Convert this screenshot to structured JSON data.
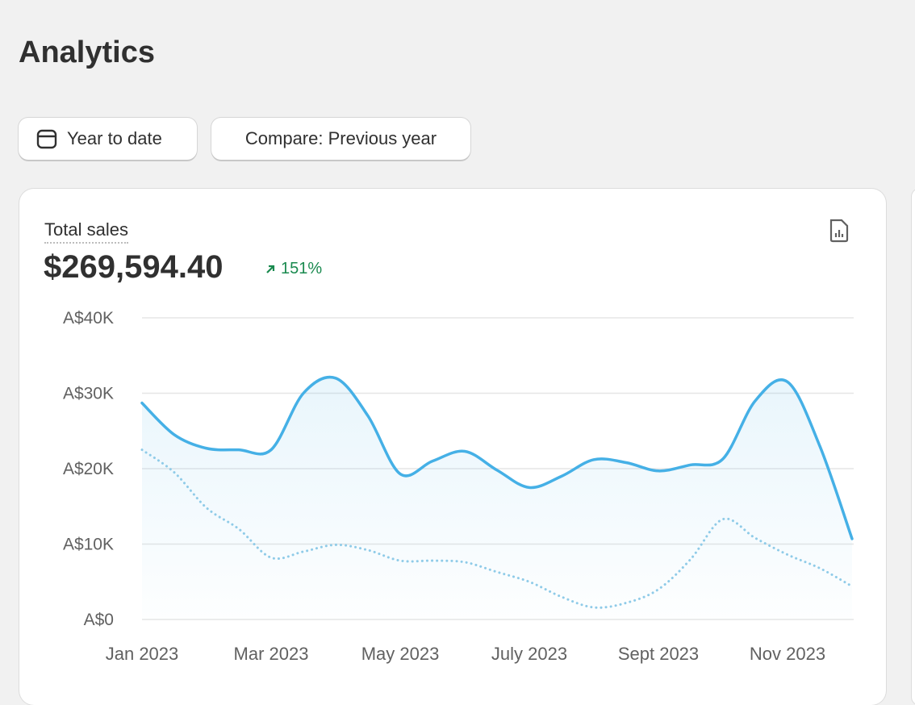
{
  "page": {
    "title": "Analytics",
    "date_button": "Year to date",
    "compare_button": "Compare: Previous year",
    "card": {
      "metric_label": "Total sales",
      "metric_value": "$269,594.40",
      "change": "151%"
    }
  },
  "chart_data": {
    "type": "line",
    "categories": [
      "Jan 2023",
      null,
      null,
      null,
      "Mar 2023",
      null,
      null,
      null,
      "May 2023",
      null,
      null,
      null,
      "July 2023",
      null,
      null,
      null,
      "Sept 2023",
      null,
      null,
      null,
      "Nov 2023",
      null,
      null
    ],
    "series": [
      {
        "color": "#45b0e6",
        "style": "solid",
        "values": [
          28700,
          24500,
          22700,
          22500,
          22500,
          30000,
          32000,
          27000,
          19300,
          21000,
          22300,
          19800,
          17500,
          19000,
          21200,
          20800,
          19700,
          20500,
          21300,
          29000,
          31500,
          23000,
          10700
        ]
      },
      {
        "color": "#8fcbe8",
        "style": "dotted",
        "values": [
          22500,
          19500,
          14800,
          12000,
          8200,
          9000,
          9900,
          9200,
          7800,
          7800,
          7600,
          6300,
          5000,
          3000,
          1600,
          2200,
          4000,
          8000,
          13300,
          10800,
          8600,
          6800,
          4400
        ]
      }
    ],
    "ylim": [
      0,
      40000
    ],
    "yticks": [
      {
        "value": 0,
        "label": "A$0"
      },
      {
        "value": 10000,
        "label": "A$10K"
      },
      {
        "value": 20000,
        "label": "A$20K"
      },
      {
        "value": 30000,
        "label": "A$30K"
      },
      {
        "value": 40000,
        "label": "A$40K"
      }
    ],
    "grid": true
  }
}
